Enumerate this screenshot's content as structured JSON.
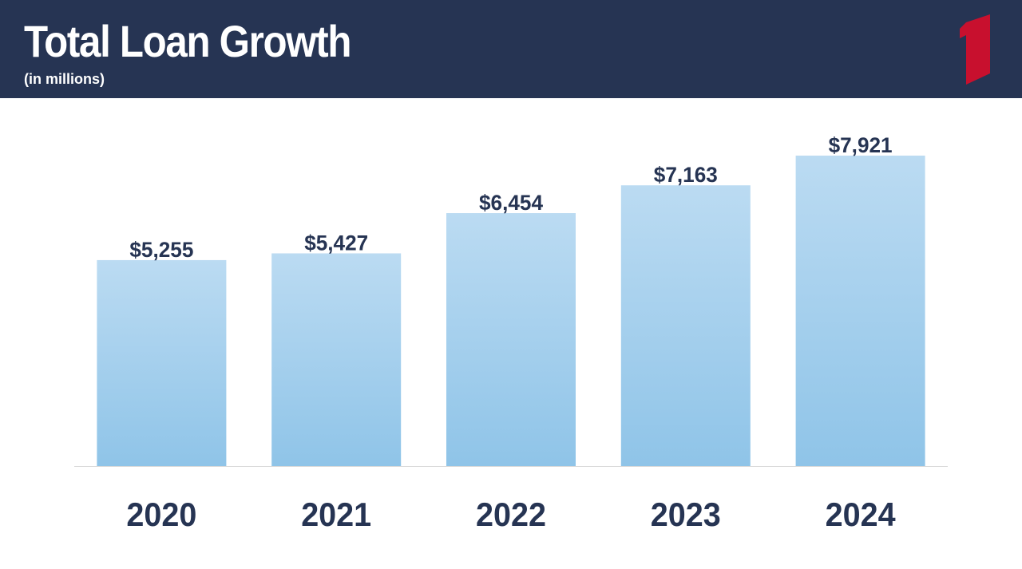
{
  "header": {
    "title": "Total Loan Growth",
    "subtitle": "(in millions)",
    "background_color": "#263453",
    "logo_icon": "red-number-one-logo-icon",
    "logo_color": "#C8102E"
  },
  "chart_data": {
    "type": "bar",
    "title": "Total Loan Growth",
    "subtitle": "(in millions)",
    "categories": [
      "2020",
      "2021",
      "2022",
      "2023",
      "2024"
    ],
    "values": [
      5255,
      5427,
      6454,
      7163,
      7921
    ],
    "value_labels": [
      "$5,255",
      "$5,427",
      "$6,454",
      "$7,163",
      "$7,921"
    ],
    "xlabel": "",
    "ylabel": "",
    "ylim": [
      0,
      8200
    ],
    "grid": false,
    "legend": "none",
    "bar_color_top": "#BBDBF2",
    "bar_color_bottom": "#8FC4E8",
    "label_color": "#263453"
  }
}
